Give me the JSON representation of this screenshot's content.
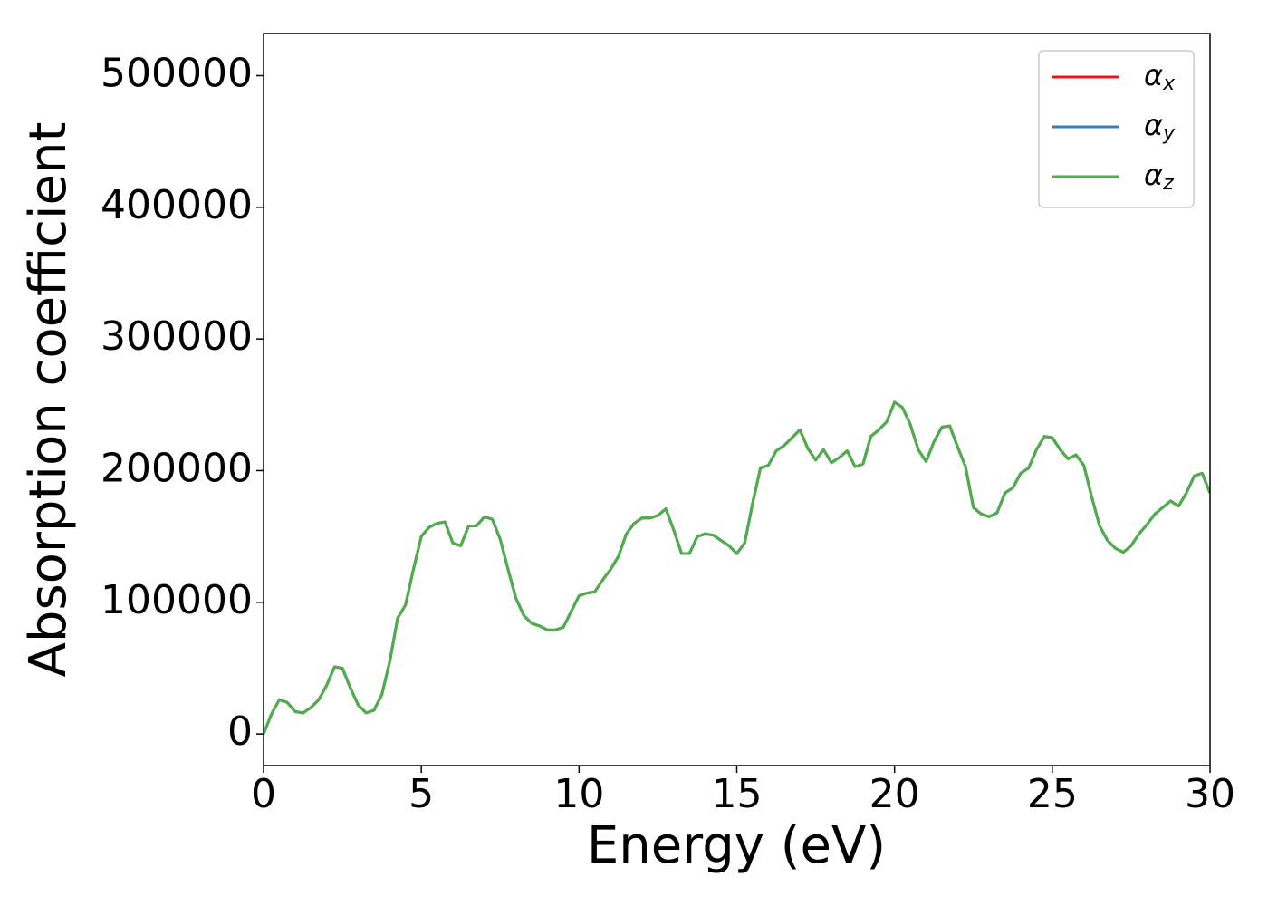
{
  "chart_data": {
    "type": "line",
    "xlabel": "Energy (eV)",
    "ylabel": "Absorption coefficient",
    "x": [
      0,
      0.25,
      0.5,
      0.75,
      1,
      1.25,
      1.5,
      1.75,
      2,
      2.25,
      2.5,
      2.75,
      3,
      3.25,
      3.5,
      3.75,
      4,
      4.25,
      4.5,
      4.75,
      5,
      5.25,
      5.5,
      5.75,
      6,
      6.25,
      6.5,
      6.75,
      7,
      7.25,
      7.5,
      7.75,
      8,
      8.25,
      8.5,
      8.75,
      9,
      9.25,
      9.5,
      9.75,
      10,
      10.25,
      10.5,
      10.75,
      11,
      11.25,
      11.5,
      11.75,
      12,
      12.25,
      12.5,
      12.75,
      13,
      13.25,
      13.5,
      13.75,
      14,
      14.25,
      14.5,
      14.75,
      15,
      15.25,
      15.5,
      15.75,
      16,
      16.25,
      16.5,
      16.75,
      17,
      17.25,
      17.5,
      17.75,
      18,
      18.25,
      18.5,
      18.75,
      19,
      19.25,
      19.5,
      19.75,
      20,
      20.25,
      20.5,
      20.75,
      21,
      21.25,
      21.5,
      21.75,
      22,
      22.25,
      22.5,
      22.75,
      23,
      23.25,
      23.5,
      23.75,
      24,
      24.25,
      24.5,
      24.75,
      25,
      25.25,
      25.5,
      25.75,
      26,
      26.25,
      26.5,
      26.75,
      27,
      27.25,
      27.5,
      27.75,
      28,
      28.25,
      28.5,
      28.75,
      29,
      29.25,
      29.5,
      29.75,
      30
    ],
    "series": [
      {
        "name": "αx",
        "color": "#e41a1c",
        "values": [
          0,
          15000,
          26000,
          24000,
          17000,
          16000,
          20000,
          26000,
          37000,
          51000,
          50000,
          35000,
          22000,
          16000,
          18000,
          30000,
          55000,
          88000,
          98000,
          125000,
          150000,
          157000,
          160000,
          161000,
          145000,
          143000,
          158000,
          158000,
          165000,
          163000,
          148000,
          125000,
          103000,
          90000,
          84000,
          82000,
          79000,
          79000,
          81000,
          93000,
          105000,
          107000,
          108000,
          117000,
          125000,
          135000,
          152000,
          160000,
          164000,
          164000,
          166000,
          171000,
          155000,
          137000,
          137000,
          150000,
          152000,
          151000,
          147000,
          143000,
          137000,
          145000,
          175000,
          202000,
          204000,
          215000,
          219000,
          225000,
          231000,
          217000,
          208000,
          216000,
          206000,
          210000,
          215000,
          203000,
          205000,
          226000,
          231000,
          237000,
          252000,
          248000,
          235000,
          216000,
          207000,
          222000,
          233000,
          234000,
          218000,
          203000,
          172000,
          167000,
          165000,
          168000,
          183000,
          187000,
          198000,
          202000,
          216000,
          226000,
          225000,
          216000,
          209000,
          212000,
          204000,
          180000,
          158000,
          147000,
          141000,
          138000,
          143000,
          152000,
          159000,
          167000,
          172000,
          177000,
          173000,
          183000,
          196000,
          198000,
          183000
        ]
      },
      {
        "name": "αy",
        "color": "#377eb8",
        "values": [
          0,
          15000,
          26000,
          24000,
          17000,
          16000,
          20000,
          26000,
          37000,
          51000,
          50000,
          35000,
          22000,
          16000,
          18000,
          30000,
          55000,
          88000,
          98000,
          125000,
          150000,
          157000,
          160000,
          161000,
          145000,
          143000,
          158000,
          158000,
          165000,
          163000,
          148000,
          125000,
          103000,
          90000,
          84000,
          82000,
          79000,
          79000,
          81000,
          93000,
          105000,
          107000,
          108000,
          117000,
          125000,
          135000,
          152000,
          160000,
          164000,
          164000,
          166000,
          171000,
          155000,
          137000,
          137000,
          150000,
          152000,
          151000,
          147000,
          143000,
          137000,
          145000,
          175000,
          202000,
          204000,
          215000,
          219000,
          225000,
          231000,
          217000,
          208000,
          216000,
          206000,
          210000,
          215000,
          203000,
          205000,
          226000,
          231000,
          237000,
          252000,
          248000,
          235000,
          216000,
          207000,
          222000,
          233000,
          234000,
          218000,
          203000,
          172000,
          167000,
          165000,
          168000,
          183000,
          187000,
          198000,
          202000,
          216000,
          226000,
          225000,
          216000,
          209000,
          212000,
          204000,
          180000,
          158000,
          147000,
          141000,
          138000,
          143000,
          152000,
          159000,
          167000,
          172000,
          177000,
          173000,
          183000,
          196000,
          198000,
          183000
        ]
      },
      {
        "name": "αz",
        "color": "#4daf4a",
        "values": [
          0,
          15000,
          26000,
          24000,
          17000,
          16000,
          20000,
          26000,
          37000,
          51000,
          50000,
          35000,
          22000,
          16000,
          18000,
          30000,
          55000,
          88000,
          98000,
          125000,
          150000,
          157000,
          160000,
          161000,
          145000,
          143000,
          158000,
          158000,
          165000,
          163000,
          148000,
          125000,
          103000,
          90000,
          84000,
          82000,
          79000,
          79000,
          81000,
          93000,
          105000,
          107000,
          108000,
          117000,
          125000,
          135000,
          152000,
          160000,
          164000,
          164000,
          166000,
          171000,
          155000,
          137000,
          137000,
          150000,
          152000,
          151000,
          147000,
          143000,
          137000,
          145000,
          175000,
          202000,
          204000,
          215000,
          219000,
          225000,
          231000,
          217000,
          208000,
          216000,
          206000,
          210000,
          215000,
          203000,
          205000,
          226000,
          231000,
          237000,
          252000,
          248000,
          235000,
          216000,
          207000,
          222000,
          233000,
          234000,
          218000,
          203000,
          172000,
          167000,
          165000,
          168000,
          183000,
          187000,
          198000,
          202000,
          216000,
          226000,
          225000,
          216000,
          209000,
          212000,
          204000,
          180000,
          158000,
          147000,
          141000,
          138000,
          143000,
          152000,
          159000,
          167000,
          172000,
          177000,
          173000,
          183000,
          196000,
          198000,
          183000
        ]
      }
    ],
    "xlim": [
      0,
      30
    ],
    "xticks": [
      0,
      5,
      10,
      15,
      20,
      25,
      30
    ],
    "ylim": [
      -24000,
      532000
    ],
    "yticks": [
      0,
      100000,
      200000,
      300000,
      400000,
      500000
    ],
    "grid": false,
    "legend": "upper right"
  }
}
